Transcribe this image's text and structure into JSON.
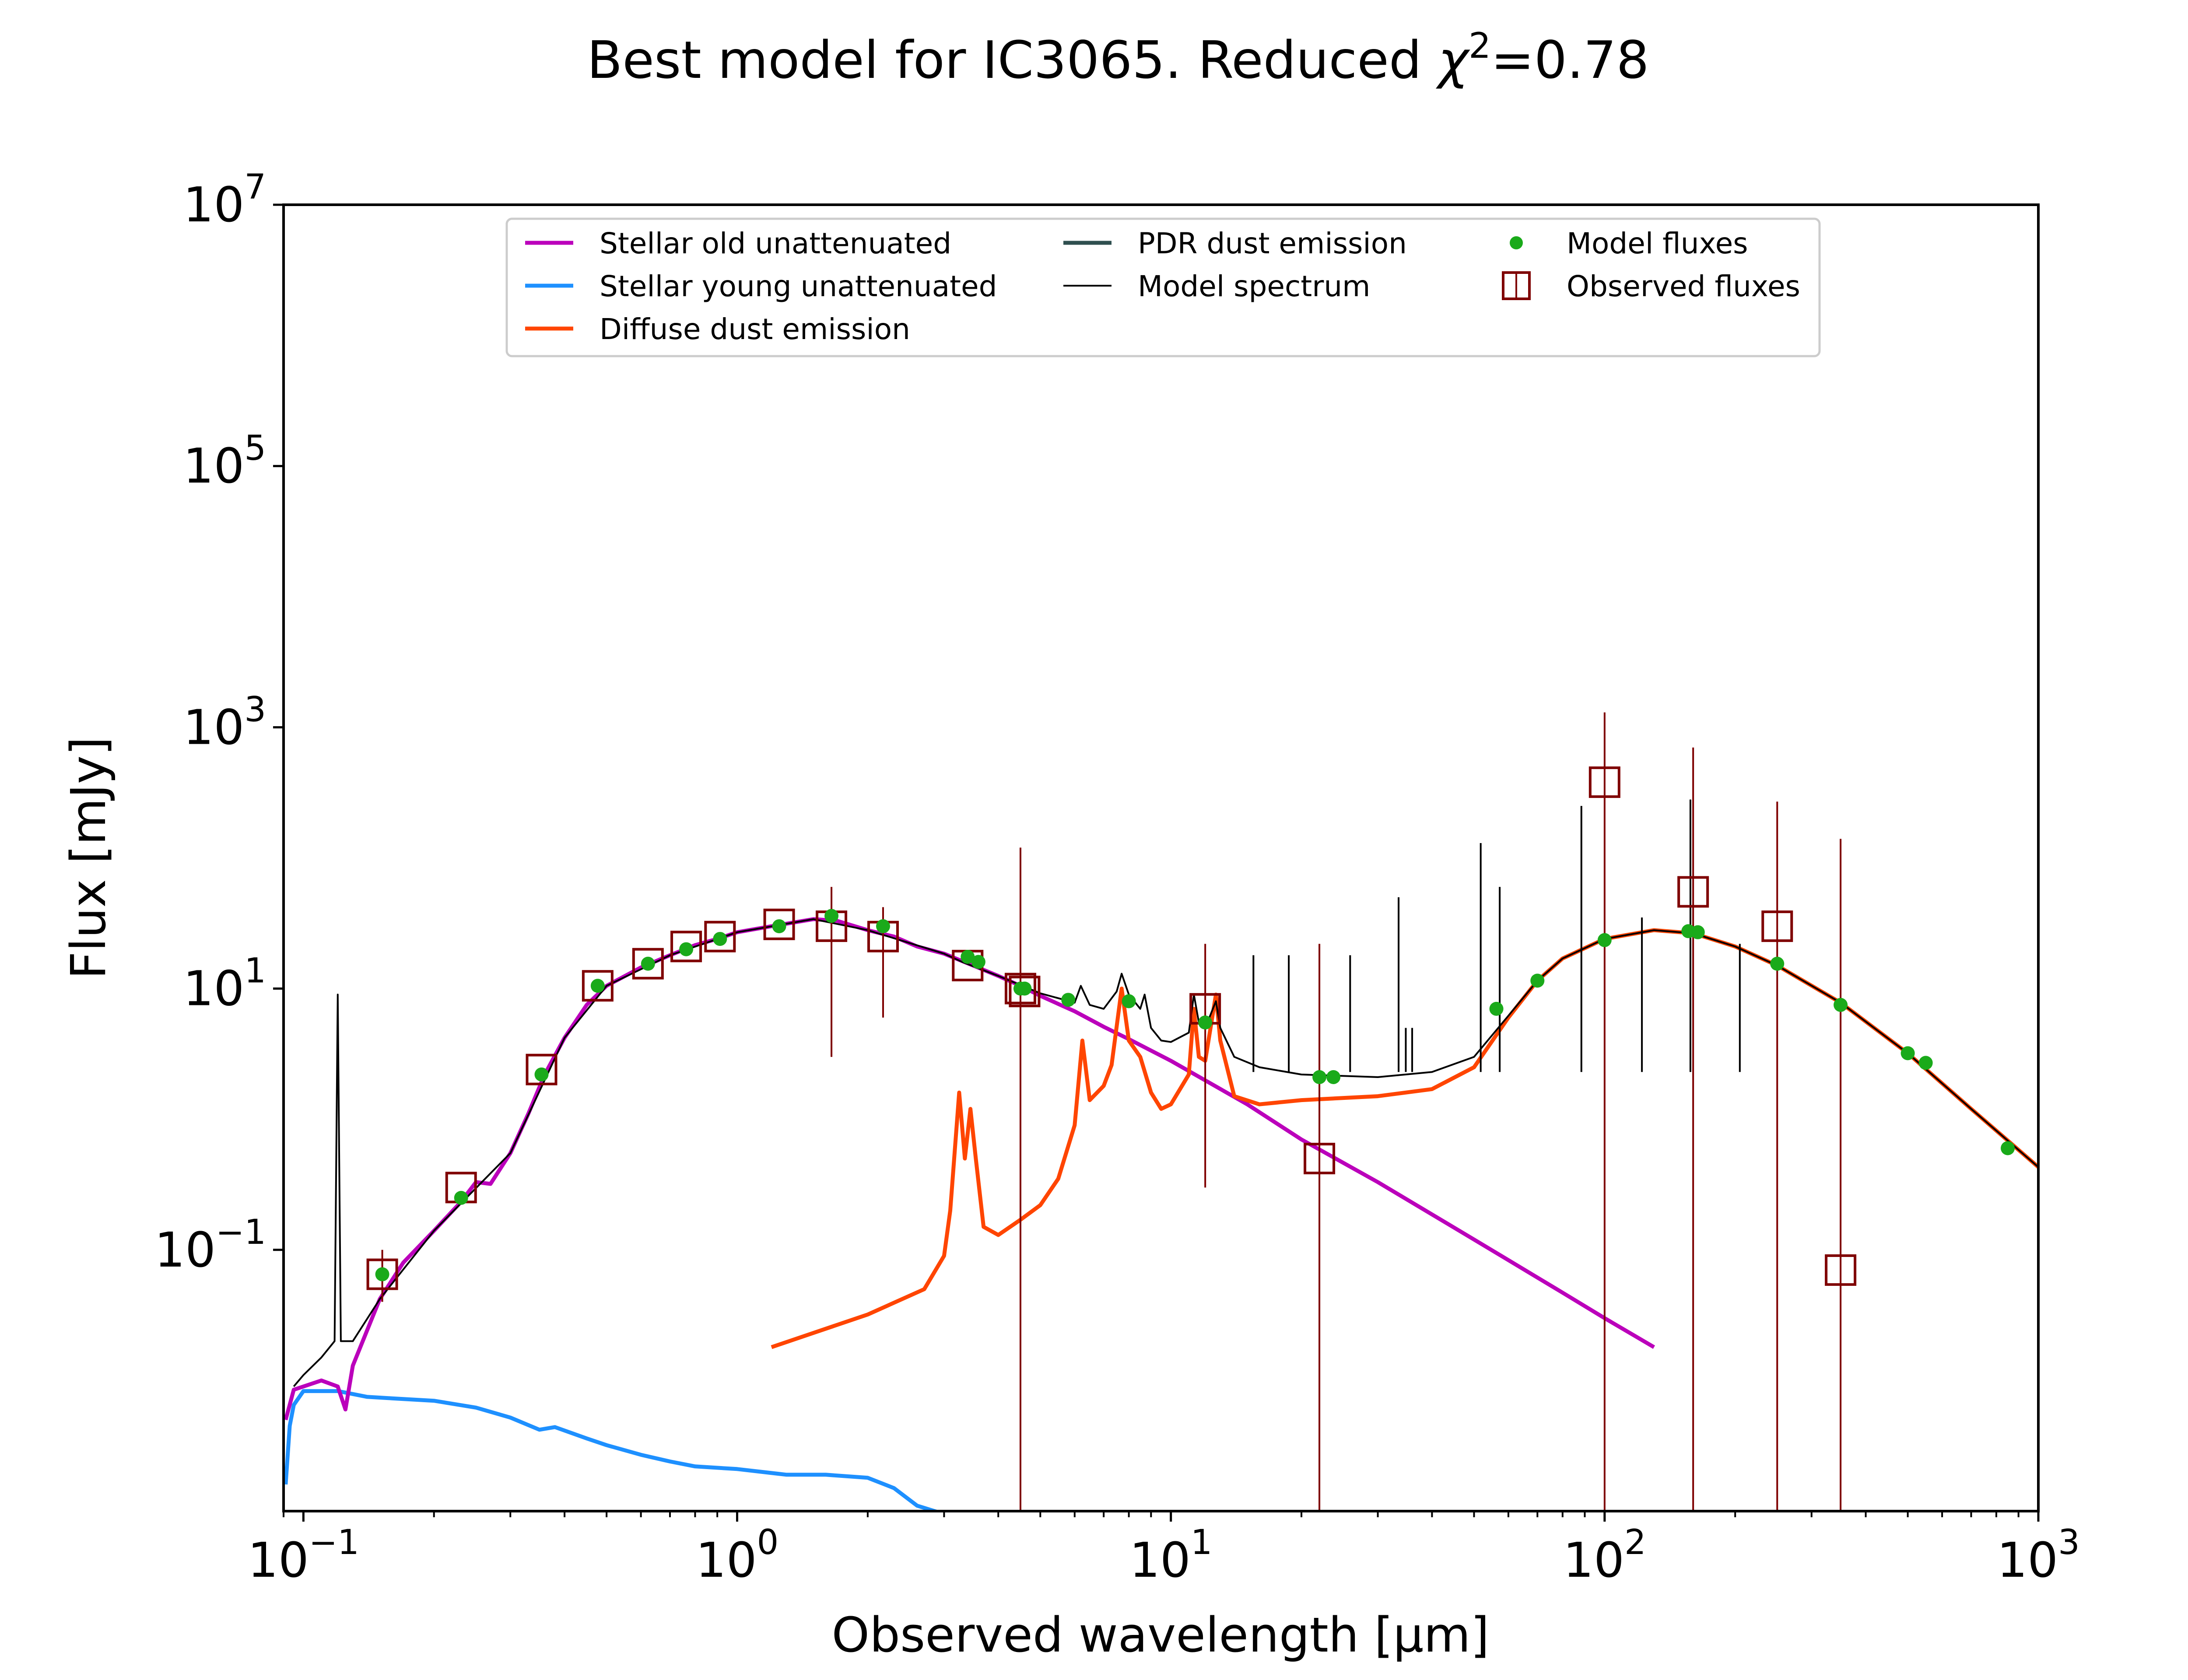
{
  "chart_data": {
    "type": "line",
    "title": "Best model for IC3065. Reduced χ²=0.78",
    "title_main": "Best model for IC3065. Reduced ",
    "title_chi": "χ",
    "title_sup": "2",
    "title_tail": "=0.78",
    "xlabel": "Observed wavelength [μm]",
    "ylabel": "Flux [mJy]",
    "xscale": "log",
    "yscale": "log",
    "xlim": [
      0.09,
      1000
    ],
    "ylim": [
      0.001,
      10000000
    ],
    "legend_position": "upper-center",
    "x_ticks": [
      {
        "base": "10",
        "exp": "−1",
        "value": 0.1
      },
      {
        "base": "10",
        "exp": "0",
        "value": 1
      },
      {
        "base": "10",
        "exp": "1",
        "value": 10
      },
      {
        "base": "10",
        "exp": "2",
        "value": 100
      },
      {
        "base": "10",
        "exp": "3",
        "value": 1000
      }
    ],
    "y_ticks": [
      {
        "base": "10",
        "exp": "−1",
        "value": 0.1
      },
      {
        "base": "10",
        "exp": "1",
        "value": 10
      },
      {
        "base": "10",
        "exp": "3",
        "value": 1000
      },
      {
        "base": "10",
        "exp": "5",
        "value": 100000
      },
      {
        "base": "10",
        "exp": "7",
        "value": 10000000
      }
    ],
    "legend": [
      {
        "label": "Stellar old unattenuated",
        "color": "#BB00BB",
        "kind": "line"
      },
      {
        "label": "Stellar young unattenuated",
        "color": "#1E90FF",
        "kind": "line"
      },
      {
        "label": "Diffuse dust emission",
        "color": "#FF4500",
        "kind": "line"
      },
      {
        "label": "PDR dust emission",
        "color": "#2F4F4F",
        "kind": "line"
      },
      {
        "label": "Model spectrum",
        "color": "#000000",
        "kind": "thinline"
      },
      {
        "label": "Model fluxes",
        "color": "#1AAA1A",
        "kind": "dot"
      },
      {
        "label": "Observed fluxes",
        "color": "#7F0000",
        "kind": "square"
      }
    ],
    "series": [
      {
        "name": "Stellar old unattenuated",
        "color": "#BB00BB",
        "points": [
          [
            0.091,
            0.005
          ],
          [
            0.095,
            0.0085
          ],
          [
            0.1,
            0.009
          ],
          [
            0.11,
            0.01
          ],
          [
            0.12,
            0.009
          ],
          [
            0.125,
            0.006
          ],
          [
            0.13,
            0.013
          ],
          [
            0.15,
            0.042
          ],
          [
            0.17,
            0.08
          ],
          [
            0.2,
            0.14
          ],
          [
            0.23,
            0.23
          ],
          [
            0.25,
            0.33
          ],
          [
            0.27,
            0.32
          ],
          [
            0.3,
            0.55
          ],
          [
            0.33,
            1.1
          ],
          [
            0.36,
            2.2
          ],
          [
            0.4,
            4.2
          ],
          [
            0.45,
            7.5
          ],
          [
            0.5,
            10.5
          ],
          [
            0.6,
            14.5
          ],
          [
            0.7,
            18
          ],
          [
            0.8,
            21.5
          ],
          [
            0.9,
            24
          ],
          [
            1.0,
            27
          ],
          [
            1.2,
            30
          ],
          [
            1.5,
            34
          ],
          [
            1.7,
            33
          ],
          [
            2.0,
            28
          ],
          [
            2.3,
            25
          ],
          [
            2.6,
            21
          ],
          [
            3.0,
            18.5
          ],
          [
            3.5,
            15
          ],
          [
            4.0,
            12.5
          ],
          [
            4.5,
            10.5
          ],
          [
            5.0,
            8.8
          ],
          [
            6.0,
            6.7
          ],
          [
            7.0,
            5.1
          ],
          [
            8.0,
            4.1
          ],
          [
            10.0,
            2.8
          ],
          [
            15.0,
            1.3
          ],
          [
            20.0,
            0.7
          ],
          [
            30.0,
            0.33
          ],
          [
            50.0,
            0.12
          ],
          [
            80.0,
            0.047
          ],
          [
            100.0,
            0.03
          ],
          [
            130.0,
            0.018
          ]
        ]
      },
      {
        "name": "Stellar young unattenuated",
        "color": "#1E90FF",
        "points": [
          [
            0.091,
            0.0016
          ],
          [
            0.093,
            0.0045
          ],
          [
            0.095,
            0.0065
          ],
          [
            0.1,
            0.0083
          ],
          [
            0.12,
            0.0083
          ],
          [
            0.14,
            0.0075
          ],
          [
            0.16,
            0.0073
          ],
          [
            0.2,
            0.007
          ],
          [
            0.25,
            0.0062
          ],
          [
            0.3,
            0.0052
          ],
          [
            0.35,
            0.0042
          ],
          [
            0.38,
            0.0044
          ],
          [
            0.45,
            0.0036
          ],
          [
            0.5,
            0.0032
          ],
          [
            0.6,
            0.0027
          ],
          [
            0.7,
            0.0024
          ],
          [
            0.8,
            0.0022
          ],
          [
            1.0,
            0.0021
          ],
          [
            1.3,
            0.0019
          ],
          [
            1.6,
            0.0019
          ],
          [
            2.0,
            0.0018
          ],
          [
            2.3,
            0.0015
          ],
          [
            2.6,
            0.0011
          ],
          [
            3.0,
            0.00095
          ]
        ]
      },
      {
        "name": "Diffuse dust emission",
        "color": "#FF4500",
        "points": [
          [
            1.2,
            0.018
          ],
          [
            2.0,
            0.032
          ],
          [
            2.7,
            0.05
          ],
          [
            3.0,
            0.09
          ],
          [
            3.1,
            0.2
          ],
          [
            3.25,
            1.6
          ],
          [
            3.35,
            0.5
          ],
          [
            3.45,
            1.2
          ],
          [
            3.55,
            0.5
          ],
          [
            3.7,
            0.15
          ],
          [
            4.0,
            0.13
          ],
          [
            4.5,
            0.17
          ],
          [
            5.0,
            0.22
          ],
          [
            5.5,
            0.35
          ],
          [
            6.0,
            0.9
          ],
          [
            6.25,
            4.0
          ],
          [
            6.5,
            1.4
          ],
          [
            7.0,
            1.8
          ],
          [
            7.3,
            2.6
          ],
          [
            7.7,
            10
          ],
          [
            8.0,
            4.0
          ],
          [
            8.5,
            3.0
          ],
          [
            9.0,
            1.6
          ],
          [
            9.5,
            1.2
          ],
          [
            10.0,
            1.3
          ],
          [
            11.0,
            2.2
          ],
          [
            11.3,
            7.0
          ],
          [
            11.6,
            3.0
          ],
          [
            12.0,
            2.8
          ],
          [
            12.7,
            9.0
          ],
          [
            13.0,
            4.0
          ],
          [
            14.0,
            1.5
          ],
          [
            16.0,
            1.3
          ],
          [
            20.0,
            1.4
          ],
          [
            30.0,
            1.5
          ],
          [
            40.0,
            1.7
          ],
          [
            50.0,
            2.5
          ],
          [
            60.0,
            6.0
          ],
          [
            70.0,
            11.5
          ],
          [
            80.0,
            17.0
          ],
          [
            100.0,
            24.0
          ],
          [
            130.0,
            28.0
          ],
          [
            160.0,
            26.5
          ],
          [
            200.0,
            21.0
          ],
          [
            250.0,
            15.0
          ],
          [
            350.0,
            7.8
          ],
          [
            500.0,
            3.2
          ],
          [
            700.0,
            1.2
          ],
          [
            1000.0,
            0.43
          ]
        ]
      },
      {
        "name": "Model spectrum",
        "color": "#000000",
        "points": [
          [
            0.095,
            0.009
          ],
          [
            0.1,
            0.011
          ],
          [
            0.11,
            0.015
          ],
          [
            0.118,
            0.02
          ],
          [
            0.12,
            9.0
          ],
          [
            0.122,
            0.02
          ],
          [
            0.13,
            0.02
          ],
          [
            0.15,
            0.042
          ],
          [
            0.2,
            0.14
          ],
          [
            0.3,
            0.55
          ],
          [
            0.4,
            4.2
          ],
          [
            0.5,
            10.5
          ],
          [
            0.7,
            18
          ],
          [
            1.0,
            27
          ],
          [
            1.5,
            34
          ],
          [
            2.0,
            28
          ],
          [
            3.0,
            18.5
          ],
          [
            3.3,
            16
          ],
          [
            4.0,
            12.5
          ],
          [
            5.0,
            9.2
          ],
          [
            6.0,
            7.8
          ],
          [
            6.2,
            10.5
          ],
          [
            6.5,
            7.5
          ],
          [
            7.0,
            7.0
          ],
          [
            7.5,
            9.5
          ],
          [
            7.7,
            13.0
          ],
          [
            8.0,
            9.0
          ],
          [
            8.5,
            7.0
          ],
          [
            8.7,
            9.0
          ],
          [
            9.0,
            5.0
          ],
          [
            9.5,
            4.0
          ],
          [
            10.0,
            3.9
          ],
          [
            11.0,
            4.6
          ],
          [
            11.3,
            9.0
          ],
          [
            11.6,
            5.5
          ],
          [
            12.0,
            5.0
          ],
          [
            12.7,
            8.0
          ],
          [
            13.0,
            5.0
          ],
          [
            14.0,
            3.0
          ],
          [
            16.0,
            2.5
          ],
          [
            20.0,
            2.2
          ],
          [
            30.0,
            2.1
          ],
          [
            40.0,
            2.3
          ],
          [
            50.0,
            3.0
          ],
          [
            60.0,
            6.2
          ],
          [
            70.0,
            11.5
          ],
          [
            80.0,
            17.0
          ],
          [
            100.0,
            24.0
          ],
          [
            130.0,
            28.0
          ],
          [
            160.0,
            26.5
          ],
          [
            200.0,
            21.0
          ],
          [
            250.0,
            15.0
          ],
          [
            350.0,
            7.8
          ],
          [
            500.0,
            3.2
          ],
          [
            700.0,
            1.2
          ],
          [
            1000.0,
            0.43
          ]
        ]
      }
    ],
    "emission_lines": [
      {
        "x": 15.5,
        "peak": 18
      },
      {
        "x": 18.7,
        "peak": 18
      },
      {
        "x": 25.9,
        "peak": 18
      },
      {
        "x": 33.5,
        "peak": 50
      },
      {
        "x": 34.8,
        "peak": 5
      },
      {
        "x": 36.0,
        "peak": 5
      },
      {
        "x": 51.8,
        "peak": 130
      },
      {
        "x": 57.3,
        "peak": 60
      },
      {
        "x": 88.4,
        "peak": 250
      },
      {
        "x": 121.9,
        "peak": 35
      },
      {
        "x": 157.7,
        "peak": 280
      },
      {
        "x": 205.0,
        "peak": 22
      }
    ],
    "model_fluxes": [
      [
        0.152,
        0.065
      ],
      [
        0.231,
        0.25
      ],
      [
        0.354,
        2.2
      ],
      [
        0.477,
        10.5
      ],
      [
        0.623,
        15.5
      ],
      [
        0.763,
        20
      ],
      [
        0.913,
        24
      ],
      [
        1.25,
        30
      ],
      [
        1.65,
        36
      ],
      [
        2.17,
        30
      ],
      [
        3.4,
        17.5
      ],
      [
        3.6,
        16
      ],
      [
        4.5,
        10
      ],
      [
        4.6,
        10
      ],
      [
        5.8,
        8.2
      ],
      [
        8.0,
        8.0
      ],
      [
        12.0,
        5.5
      ],
      [
        22.0,
        2.1
      ],
      [
        23.7,
        2.1
      ],
      [
        56.3,
        7.0
      ],
      [
        70.0,
        11.5
      ],
      [
        100.0,
        23.5
      ],
      [
        156.0,
        27.5
      ],
      [
        164.0,
        27
      ],
      [
        250.0,
        15.5
      ],
      [
        350.0,
        7.5
      ],
      [
        500.0,
        3.2
      ],
      [
        550.0,
        2.7
      ],
      [
        850.0,
        0.6
      ]
    ],
    "observed_fluxes": [
      {
        "x": 0.152,
        "y": 0.065,
        "yerr_lo": 0.04,
        "yerr_hi": 0.1
      },
      {
        "x": 0.231,
        "y": 0.3
      },
      {
        "x": 0.354,
        "y": 2.4
      },
      {
        "x": 0.477,
        "y": 10.5
      },
      {
        "x": 0.623,
        "y": 15.5
      },
      {
        "x": 0.763,
        "y": 21
      },
      {
        "x": 0.913,
        "y": 25
      },
      {
        "x": 1.25,
        "y": 31
      },
      {
        "x": 1.65,
        "y": 30,
        "yerr_lo": 3,
        "yerr_hi": 60
      },
      {
        "x": 2.17,
        "y": 25,
        "yerr_lo": 6,
        "yerr_hi": 42
      },
      {
        "x": 3.4,
        "y": 15
      },
      {
        "x": 4.5,
        "y": 10,
        "yerr_lo": 0.001,
        "yerr_hi": 120
      },
      {
        "x": 4.6,
        "y": 9.5
      },
      {
        "x": 12.0,
        "y": 7.0,
        "yerr_lo": 0.3,
        "yerr_hi": 22
      },
      {
        "x": 22.0,
        "y": 0.5,
        "yerr_lo": 0.001,
        "yerr_hi": 22
      },
      {
        "x": 100.0,
        "y": 380,
        "yerr_lo": 0.001,
        "yerr_hi": 1300
      },
      {
        "x": 160.0,
        "y": 55,
        "yerr_lo": 0.001,
        "yerr_hi": 700
      },
      {
        "x": 250.0,
        "y": 30,
        "yerr_lo": 0.001,
        "yerr_hi": 270
      },
      {
        "x": 350.0,
        "y": 0.07,
        "yerr_lo": 0.001,
        "yerr_hi": 140
      }
    ]
  }
}
